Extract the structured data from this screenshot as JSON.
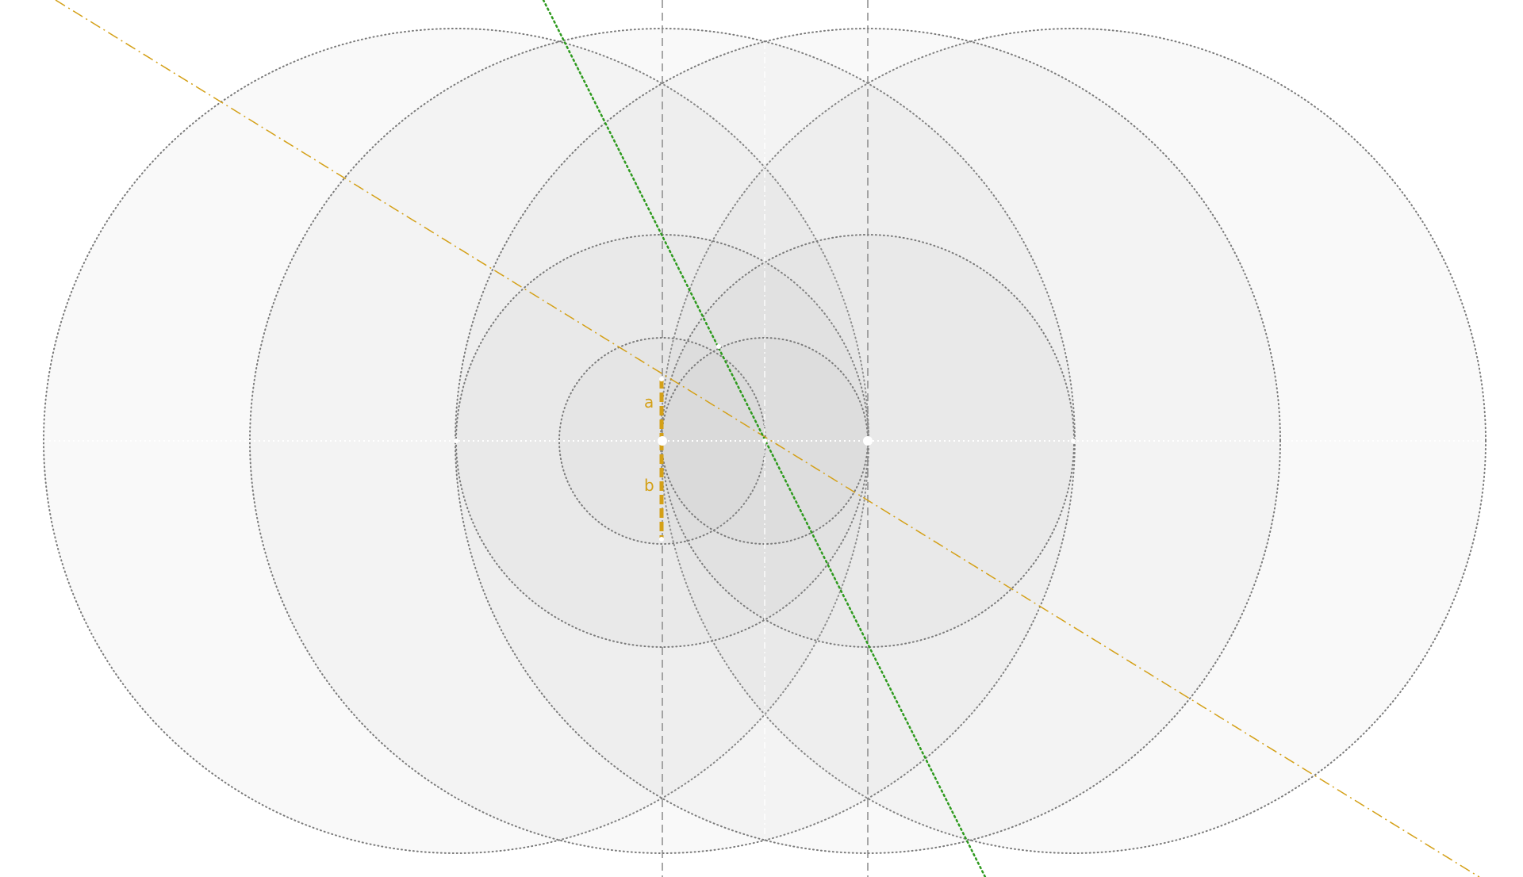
{
  "figure": {
    "background": "#ffffff",
    "circle_fill": "#b8b8b8",
    "circle_stroke": "#7a7a7a",
    "guide_stroke": "#8a8a8a",
    "axis_stroke": "#ffffff",
    "accent_orange": "#d4a017",
    "accent_green": "#2e9a1e"
  },
  "segments": {
    "upper_label": "a",
    "lower_label": "b"
  }
}
